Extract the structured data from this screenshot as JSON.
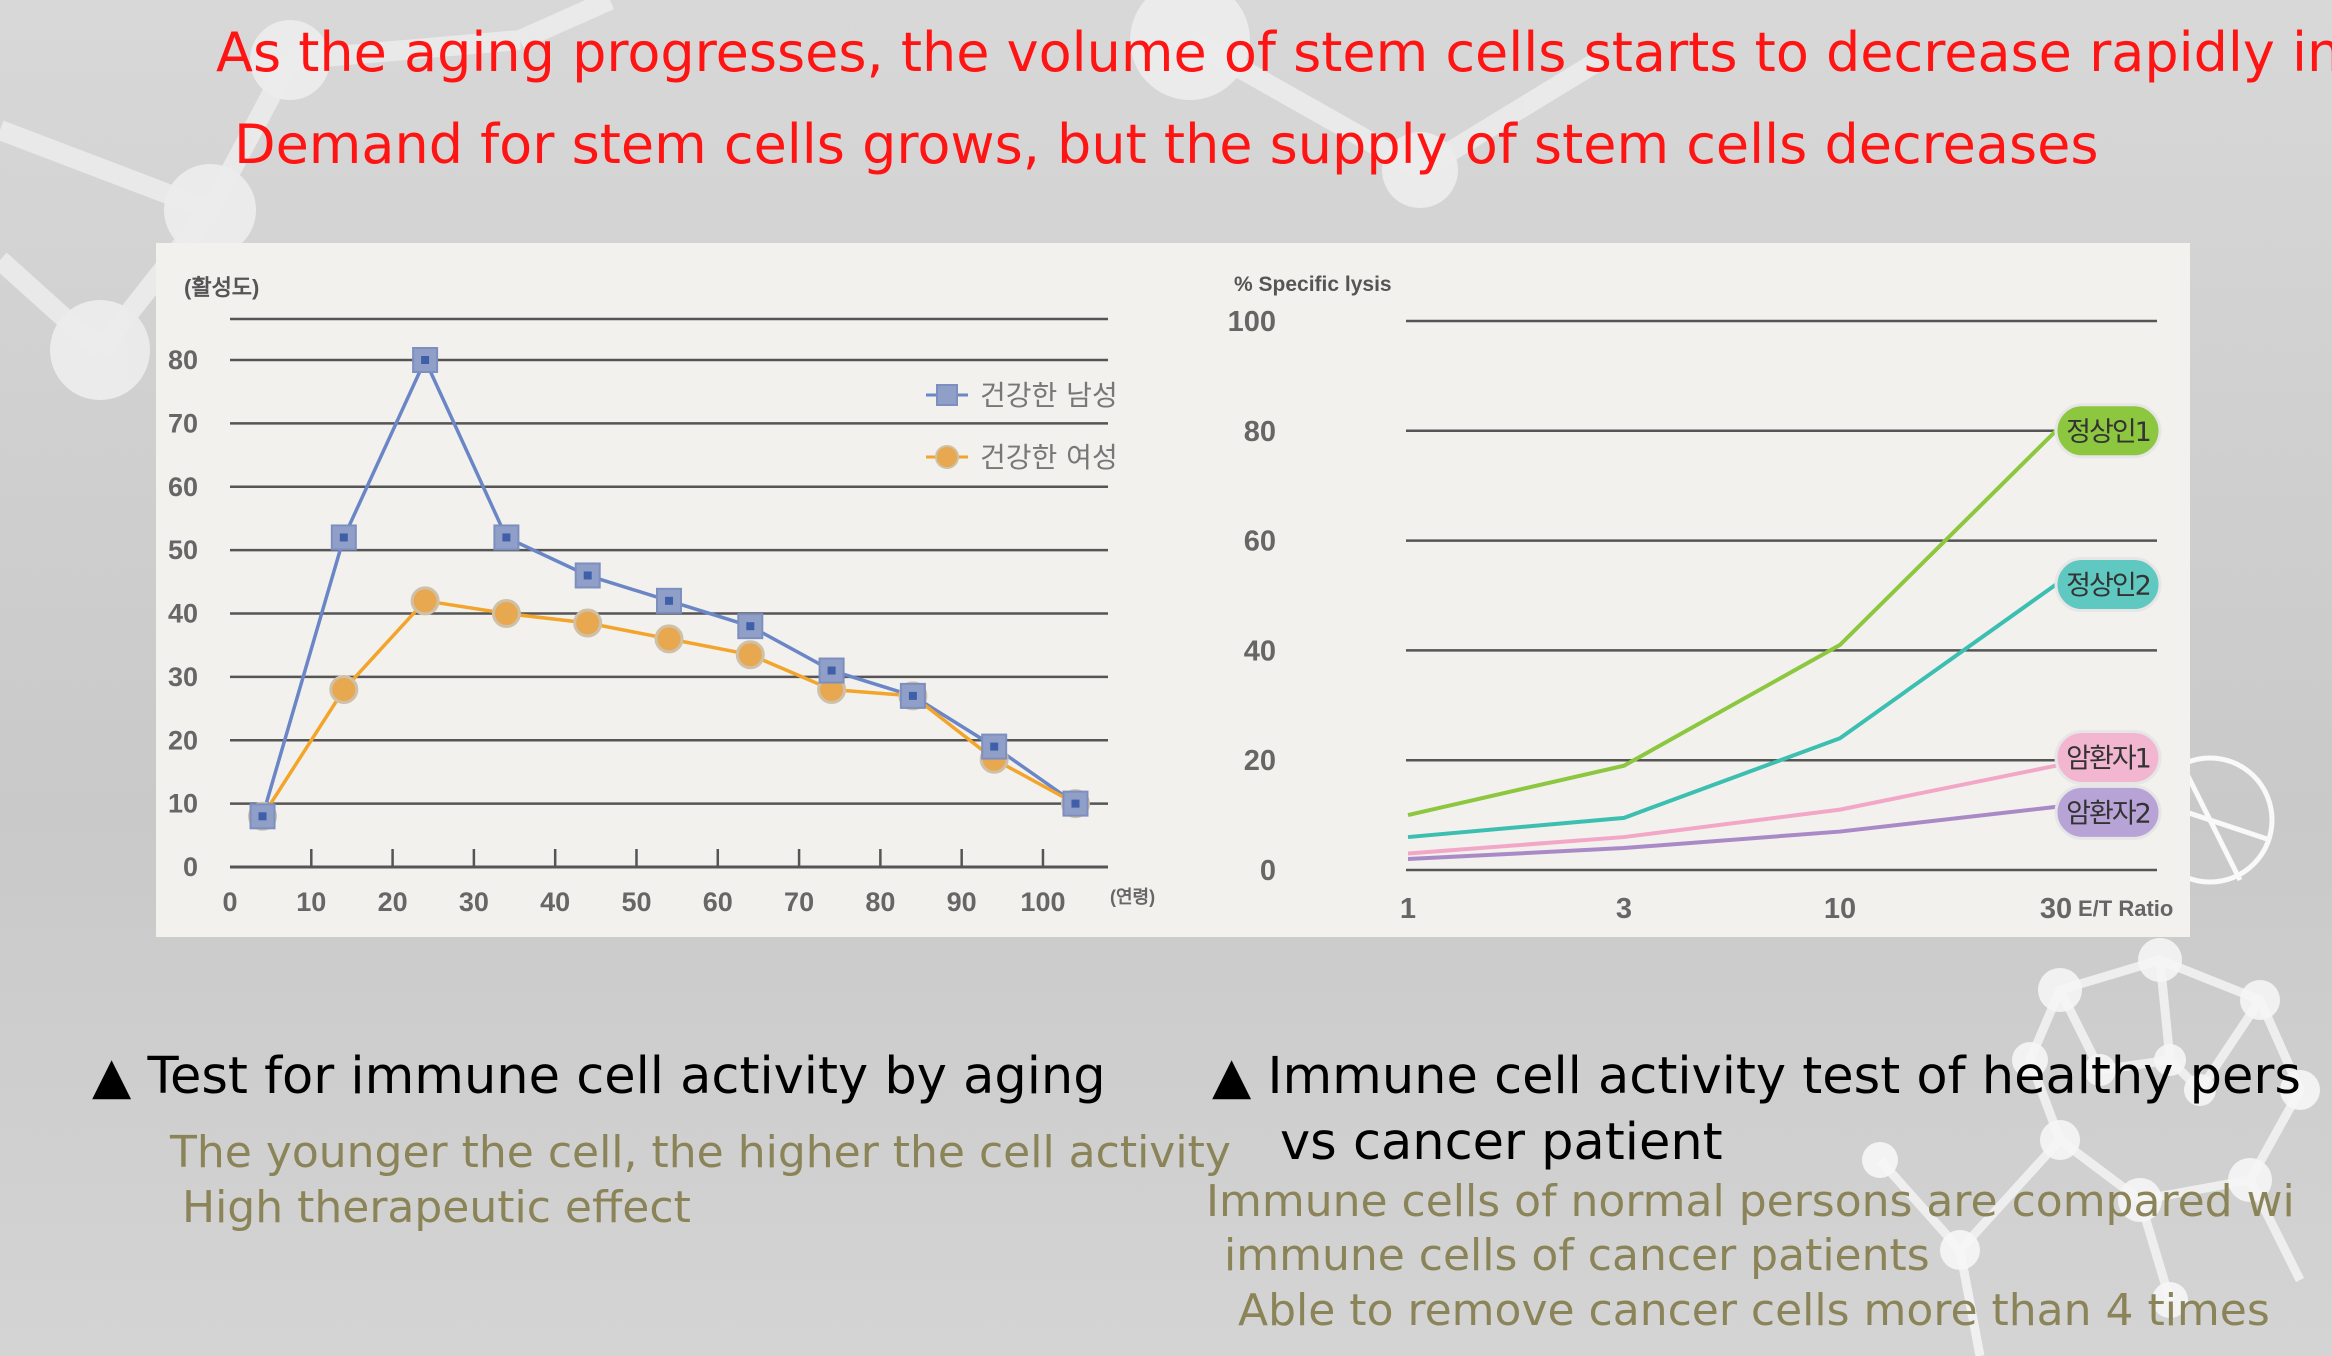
{
  "headlines": {
    "line1": "As the aging progresses, the volume of stem cells starts to decrease rapidly in th",
    "line2": "Demand for stem cells grows, but the supply of stem cells decreases"
  },
  "captions": {
    "left_title": "Test for immune cell activity by aging",
    "left_note_1": "The younger the cell, the higher the cell activity",
    "left_note_2": "High therapeutic effect",
    "right_title_1": "Immune cell activity test of healthy pers",
    "right_title_2": "vs cancer patient",
    "right_note_1": "Immune cells of normal persons are compared wi",
    "right_note_2": "immune cells of cancer patients",
    "right_note_3": "Able to remove cancer cells more than 4 times",
    "bullet": "▲"
  },
  "colors": {
    "headline": "#ff1414",
    "note": "#8b8458",
    "male_line": "#6b86c6",
    "male_marker": "#8f9fc8",
    "female_line": "#f3a52b",
    "female_marker": "#e8a850",
    "normal1": "#8dc63f",
    "normal2": "#3cbfb0",
    "patient1": "#f2a7c6",
    "patient2": "#a98ac6"
  },
  "chart_data": [
    {
      "type": "line",
      "ylabel": "(활성도)",
      "xunit": "(연령)",
      "ylim": [
        0,
        80
      ],
      "yticks": [
        0,
        10,
        20,
        30,
        40,
        50,
        60,
        70,
        80
      ],
      "xticks": [
        0,
        10,
        20,
        30,
        40,
        50,
        60,
        70,
        80,
        90,
        100
      ],
      "xlim": [
        0,
        108
      ],
      "grid": true,
      "legend_position": "top-right",
      "series": [
        {
          "name": "건강한 남성",
          "color": "#6b86c6",
          "marker": "square",
          "x": [
            4,
            14,
            24,
            34,
            44,
            54,
            64,
            74,
            84,
            94,
            104
          ],
          "values": [
            8,
            52,
            80,
            52,
            46,
            42,
            38,
            31,
            27,
            19,
            10
          ]
        },
        {
          "name": "건강한 여성",
          "color": "#f3a52b",
          "marker": "circle",
          "x": [
            4,
            14,
            24,
            34,
            44,
            54,
            64,
            74,
            84,
            94,
            104
          ],
          "values": [
            8,
            28,
            42,
            40,
            38.5,
            36,
            33.5,
            28,
            27,
            17,
            10
          ]
        }
      ]
    },
    {
      "type": "line",
      "ylabel": "% Specific lysis",
      "xlabel": "E/T Ratio",
      "ylim": [
        0,
        100
      ],
      "yticks": [
        0,
        20,
        40,
        60,
        80,
        100
      ],
      "categories": [
        "1",
        "3",
        "10",
        "30"
      ],
      "grid": true,
      "legend_position": "right, labels at line ends",
      "series": [
        {
          "name": "정상인1",
          "color": "#8dc63f",
          "values": [
            10,
            19,
            41,
            80
          ]
        },
        {
          "name": "정상인2",
          "color": "#3cbfb0",
          "values": [
            6,
            9.5,
            24,
            52
          ]
        },
        {
          "name": "암환자1",
          "color": "#f2a7c6",
          "values": [
            3,
            6,
            11,
            19
          ]
        },
        {
          "name": "암환자2",
          "color": "#a98ac6",
          "values": [
            2,
            4,
            7,
            11.5
          ]
        }
      ]
    }
  ]
}
